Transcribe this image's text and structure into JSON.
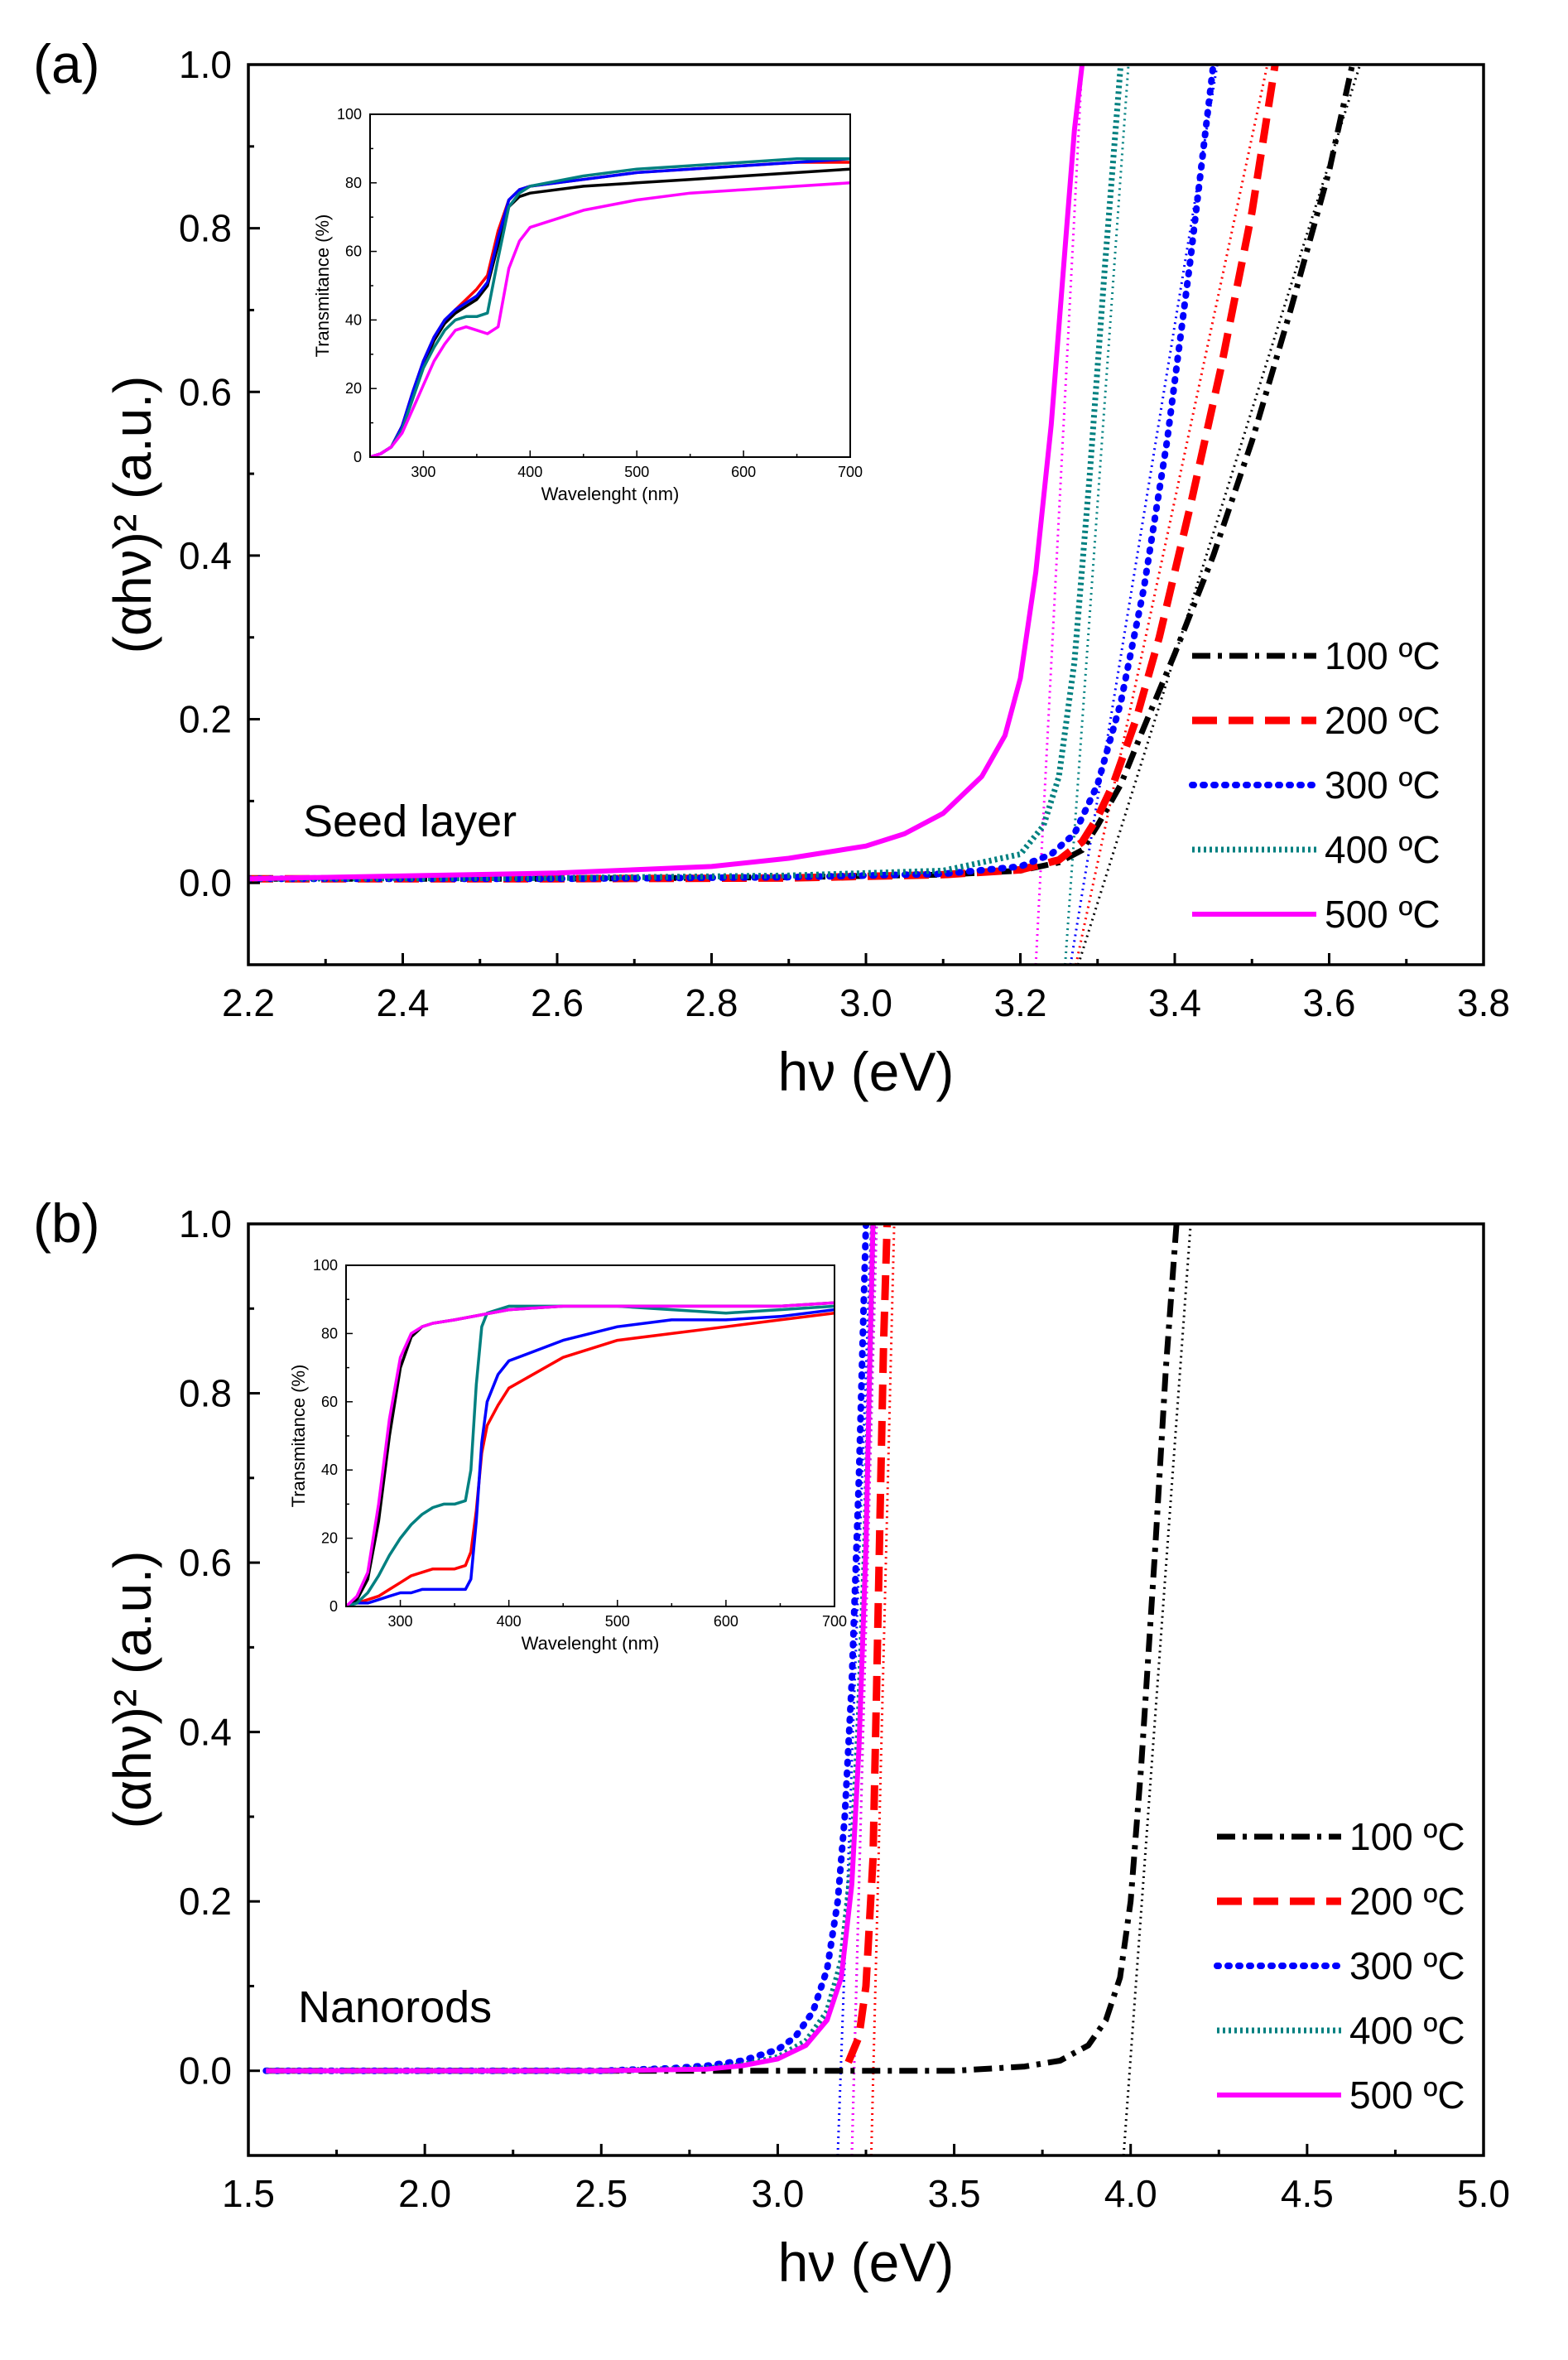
{
  "colors": {
    "100": "#000000",
    "200": "#ff0000",
    "300": "#0000ff",
    "400": "#008080",
    "500": "#ff00ff"
  },
  "chart_data": [
    {
      "type": "line",
      "panel_label": "(a)",
      "annotation": "Seed layer",
      "xlabel": "hν (eV)",
      "ylabel": "(αhν)² (a.u.)",
      "xlim": [
        2.2,
        3.8
      ],
      "ylim": [
        -0.1,
        1.0
      ],
      "xticks": [
        "2.2",
        "2.4",
        "2.6",
        "2.8",
        "3.0",
        "3.2",
        "3.4",
        "3.6",
        "3.8"
      ],
      "yticks": [
        "0.0",
        "0.2",
        "0.4",
        "0.6",
        "0.8",
        "1.0"
      ],
      "legend": [
        "100 ºC",
        "200 ºC",
        "300 ºC",
        "400 ºC",
        "500 ºC"
      ],
      "series": [
        {
          "name": "100 ºC",
          "x": [
            2.2,
            2.6,
            2.9,
            3.1,
            3.2,
            3.25,
            3.28,
            3.3,
            3.33,
            3.36,
            3.4,
            3.45,
            3.5,
            3.55,
            3.6,
            3.63
          ],
          "y": [
            0.005,
            0.005,
            0.007,
            0.01,
            0.015,
            0.025,
            0.04,
            0.07,
            0.12,
            0.19,
            0.28,
            0.4,
            0.54,
            0.7,
            0.87,
            1.0
          ]
        },
        {
          "name": "200 ºC",
          "x": [
            2.2,
            2.6,
            2.9,
            3.1,
            3.2,
            3.25,
            3.28,
            3.3,
            3.32,
            3.35,
            3.38,
            3.42,
            3.46,
            3.5,
            3.53
          ],
          "y": [
            0.005,
            0.005,
            0.006,
            0.01,
            0.016,
            0.028,
            0.05,
            0.08,
            0.12,
            0.2,
            0.3,
            0.46,
            0.63,
            0.82,
            1.0
          ]
        },
        {
          "name": "300 ºC",
          "x": [
            2.2,
            2.6,
            2.9,
            3.1,
            3.2,
            3.24,
            3.27,
            3.3,
            3.33,
            3.36,
            3.39,
            3.42,
            3.45
          ],
          "y": [
            0.005,
            0.005,
            0.007,
            0.011,
            0.02,
            0.035,
            0.06,
            0.12,
            0.22,
            0.36,
            0.54,
            0.76,
            1.0
          ]
        },
        {
          "name": "400 ºC",
          "x": [
            2.2,
            2.6,
            2.9,
            3.1,
            3.2,
            3.23,
            3.25,
            3.27,
            3.29,
            3.31,
            3.33
          ],
          "y": [
            0.005,
            0.006,
            0.009,
            0.015,
            0.035,
            0.07,
            0.13,
            0.27,
            0.5,
            0.76,
            1.0
          ]
        },
        {
          "name": "500 ºC",
          "x": [
            2.2,
            2.6,
            2.8,
            2.9,
            3.0,
            3.05,
            3.1,
            3.15,
            3.18,
            3.2,
            3.22,
            3.24,
            3.26,
            3.27,
            3.28
          ],
          "y": [
            0.005,
            0.012,
            0.02,
            0.03,
            0.045,
            0.06,
            0.085,
            0.13,
            0.18,
            0.25,
            0.38,
            0.56,
            0.8,
            0.92,
            1.0
          ]
        }
      ],
      "fit_lines": [
        {
          "name": "100 ºC",
          "x": [
            3.275,
            3.64
          ],
          "y": [
            -0.1,
            1.0
          ]
        },
        {
          "name": "200 ºC",
          "x": [
            3.272,
            3.52
          ],
          "y": [
            -0.1,
            1.0
          ]
        },
        {
          "name": "300 ºC",
          "x": [
            3.265,
            3.455
          ],
          "y": [
            -0.1,
            1.0
          ]
        },
        {
          "name": "400 ºC",
          "x": [
            3.258,
            3.34
          ],
          "y": [
            -0.1,
            1.0
          ]
        },
        {
          "name": "500 ºC",
          "x": [
            3.22,
            3.28
          ],
          "y": [
            -0.1,
            1.0
          ]
        }
      ],
      "inset": {
        "type": "line",
        "xlabel": "Wavelenght (nm)",
        "ylabel": "Transmitance (%)",
        "xlim": [
          250,
          700
        ],
        "ylim": [
          0,
          100
        ],
        "xticks": [
          "300",
          "400",
          "500",
          "600",
          "700"
        ],
        "yticks": [
          "0",
          "20",
          "40",
          "60",
          "80",
          "100"
        ],
        "series": [
          {
            "name": "100 ºC",
            "x": [
              250,
              260,
              270,
              280,
              290,
              300,
              310,
              320,
              330,
              340,
              350,
              360,
              370,
              380,
              390,
              400,
              450,
              500,
              550,
              600,
              650,
              700
            ],
            "y": [
              0,
              1,
              3,
              9,
              18,
              27,
              34,
              39,
              42,
              44,
              46,
              50,
              62,
              73,
              76,
              77,
              79,
              80,
              81,
              82,
              83,
              84
            ]
          },
          {
            "name": "200 ºC",
            "x": [
              250,
              260,
              270,
              280,
              290,
              300,
              310,
              320,
              330,
              340,
              350,
              360,
              370,
              380,
              390,
              400,
              450,
              500,
              550,
              600,
              650,
              700
            ],
            "y": [
              0,
              1,
              3,
              9,
              19,
              28,
              35,
              40,
              43,
              46,
              49,
              53,
              66,
              75,
              78,
              79,
              81,
              83,
              84,
              85,
              86,
              86
            ]
          },
          {
            "name": "300 ºC",
            "x": [
              250,
              260,
              270,
              280,
              290,
              300,
              310,
              320,
              330,
              340,
              350,
              360,
              370,
              380,
              390,
              400,
              450,
              500,
              550,
              600,
              650,
              700
            ],
            "y": [
              0,
              1,
              3,
              9,
              19,
              28,
              35,
              40,
              43,
              45,
              47,
              51,
              64,
              75,
              78,
              79,
              81,
              83,
              84,
              85,
              86,
              87
            ]
          },
          {
            "name": "400 ºC",
            "x": [
              250,
              260,
              270,
              280,
              290,
              300,
              310,
              320,
              330,
              340,
              350,
              360,
              370,
              380,
              390,
              400,
              450,
              500,
              550,
              600,
              650,
              700
            ],
            "y": [
              0,
              1,
              3,
              8,
              17,
              26,
              32,
              37,
              40,
              41,
              41,
              42,
              58,
              73,
              77,
              79,
              82,
              84,
              85,
              86,
              87,
              87
            ]
          },
          {
            "name": "500 ºC",
            "x": [
              250,
              260,
              270,
              280,
              290,
              300,
              310,
              320,
              330,
              340,
              350,
              360,
              370,
              380,
              390,
              400,
              450,
              500,
              550,
              600,
              650,
              700
            ],
            "y": [
              0,
              1,
              3,
              7,
              14,
              21,
              28,
              33,
              37,
              38,
              37,
              36,
              38,
              55,
              63,
              67,
              72,
              75,
              77,
              78,
              79,
              80
            ]
          }
        ]
      }
    },
    {
      "type": "line",
      "panel_label": "(b)",
      "annotation": "Nanorods",
      "xlabel": "hν (eV)",
      "ylabel": "(αhν)² (a.u.)",
      "xlim": [
        1.5,
        5.0
      ],
      "ylim": [
        -0.1,
        1.0
      ],
      "xticks": [
        "1.5",
        "2.0",
        "2.5",
        "3.0",
        "3.5",
        "4.0",
        "4.5",
        "5.0"
      ],
      "yticks": [
        "0.0",
        "0.2",
        "0.4",
        "0.6",
        "0.8",
        "1.0"
      ],
      "legend": [
        "100 ºC",
        "200 ºC",
        "300 ºC",
        "400 ºC",
        "500 ºC"
      ],
      "series": [
        {
          "name": "100 ºC",
          "x": [
            1.55,
            2.5,
            3.0,
            3.5,
            3.7,
            3.8,
            3.88,
            3.93,
            3.97,
            4.0,
            4.03,
            4.07,
            4.1,
            4.13
          ],
          "y": [
            0.0,
            0.0,
            0.0,
            0.0,
            0.005,
            0.012,
            0.03,
            0.06,
            0.11,
            0.2,
            0.36,
            0.62,
            0.83,
            1.0
          ]
        },
        {
          "name": "200 ºC",
          "x": [
            3.2,
            3.23,
            3.25,
            3.27,
            3.28,
            3.29,
            3.3,
            3.31
          ],
          "y": [
            0.01,
            0.04,
            0.1,
            0.25,
            0.45,
            0.66,
            0.86,
            1.0
          ]
        },
        {
          "name": "300 ºC",
          "x": [
            1.55,
            2.5,
            2.7,
            2.8,
            2.9,
            3.0,
            3.05,
            3.1,
            3.14,
            3.17,
            3.19,
            3.21,
            3.23,
            3.24,
            3.25
          ],
          "y": [
            0.0,
            0.0,
            0.003,
            0.006,
            0.012,
            0.025,
            0.04,
            0.07,
            0.12,
            0.2,
            0.3,
            0.46,
            0.7,
            0.85,
            1.0
          ]
        },
        {
          "name": "400 ºC",
          "x": [
            1.55,
            2.5,
            2.8,
            2.9,
            3.0,
            3.08,
            3.14,
            3.18,
            3.21,
            3.23,
            3.25,
            3.26,
            3.27
          ],
          "y": [
            0.0,
            0.0,
            0.003,
            0.007,
            0.016,
            0.035,
            0.07,
            0.13,
            0.25,
            0.42,
            0.65,
            0.82,
            1.0
          ]
        },
        {
          "name": "500 ºC",
          "x": [
            1.55,
            2.5,
            2.8,
            2.9,
            3.0,
            3.08,
            3.14,
            3.18,
            3.21,
            3.23,
            3.25,
            3.26,
            3.27
          ],
          "y": [
            0.0,
            0.0,
            0.002,
            0.006,
            0.014,
            0.03,
            0.06,
            0.11,
            0.22,
            0.38,
            0.62,
            0.82,
            1.0
          ]
        }
      ],
      "fit_lines": [
        {
          "name": "100 ºC",
          "x": [
            3.98,
            4.17
          ],
          "y": [
            -0.1,
            1.0
          ]
        },
        {
          "name": "200 ºC",
          "x": [
            3.265,
            3.33
          ],
          "y": [
            -0.1,
            1.0
          ]
        },
        {
          "name": "300 ºC",
          "x": [
            3.17,
            3.265
          ],
          "y": [
            -0.1,
            1.0
          ]
        },
        {
          "name": "400 ºC",
          "x": [
            3.21,
            3.28
          ],
          "y": [
            -0.1,
            1.0
          ]
        },
        {
          "name": "500 ºC",
          "x": [
            3.21,
            3.28
          ],
          "y": [
            -0.1,
            1.0
          ]
        }
      ],
      "inset": {
        "type": "line",
        "xlabel": "Wavelenght (nm)",
        "ylabel": "Transmitance (%)",
        "xlim": [
          250,
          700
        ],
        "ylim": [
          0,
          100
        ],
        "xticks": [
          "300",
          "400",
          "500",
          "600",
          "700"
        ],
        "yticks": [
          "0",
          "20",
          "40",
          "60",
          "80",
          "100"
        ],
        "series": [
          {
            "name": "100 ºC",
            "x": [
              250,
              260,
              270,
              280,
              290,
              300,
              310,
              320,
              330,
              350,
              400,
              450,
              500,
              550,
              600,
              650,
              700
            ],
            "y": [
              0,
              2,
              8,
              25,
              50,
              70,
              79,
              82,
              83,
              84,
              87,
              88,
              88,
              88,
              88,
              88,
              89
            ]
          },
          {
            "name": "200 ºC",
            "x": [
              250,
              260,
              270,
              280,
              290,
              300,
              310,
              320,
              330,
              340,
              350,
              360,
              365,
              370,
              375,
              380,
              390,
              400,
              450,
              500,
              550,
              600,
              650,
              700
            ],
            "y": [
              0,
              1,
              2,
              3,
              5,
              7,
              9,
              10,
              11,
              11,
              11,
              12,
              16,
              28,
              45,
              53,
              59,
              64,
              73,
              78,
              80,
              82,
              84,
              86
            ]
          },
          {
            "name": "300 ºC",
            "x": [
              250,
              260,
              270,
              280,
              290,
              300,
              310,
              320,
              330,
              340,
              350,
              360,
              365,
              370,
              375,
              380,
              390,
              400,
              450,
              500,
              550,
              600,
              650,
              700
            ],
            "y": [
              0,
              1,
              1,
              2,
              3,
              4,
              4,
              5,
              5,
              5,
              5,
              5,
              8,
              25,
              48,
              60,
              68,
              72,
              78,
              82,
              84,
              84,
              85,
              87
            ]
          },
          {
            "name": "400 ºC",
            "x": [
              250,
              260,
              270,
              280,
              290,
              300,
              310,
              320,
              330,
              340,
              350,
              360,
              365,
              370,
              375,
              380,
              390,
              400,
              450,
              500,
              550,
              600,
              650,
              700
            ],
            "y": [
              0,
              1,
              4,
              9,
              15,
              20,
              24,
              27,
              29,
              30,
              30,
              31,
              40,
              65,
              82,
              86,
              87,
              88,
              88,
              88,
              87,
              86,
              87,
              88
            ]
          },
          {
            "name": "500 ºC",
            "x": [
              250,
              260,
              270,
              280,
              290,
              300,
              310,
              320,
              330,
              350,
              400,
              450,
              500,
              550,
              600,
              650,
              700
            ],
            "y": [
              0,
              3,
              10,
              30,
              55,
              73,
              80,
              82,
              83,
              84,
              87,
              88,
              88,
              88,
              88,
              88,
              89
            ]
          }
        ]
      }
    }
  ]
}
